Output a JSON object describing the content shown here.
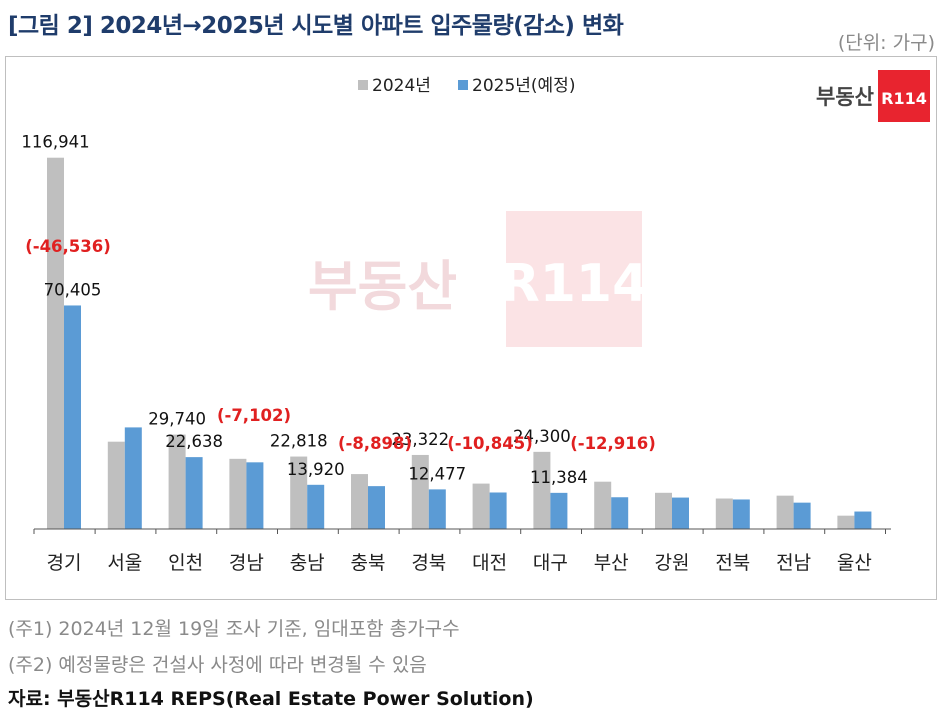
{
  "header": {
    "title": "[그림 2] 2024년→2025년 시도별 아파트 입주물량(감소) 변화",
    "unit": "(단위: 가구)"
  },
  "brand": {
    "logo_text": "부동산",
    "logo_badge": "R114",
    "badge_color": "#e8242f"
  },
  "chart_data": {
    "type": "bar",
    "categories": [
      "경기",
      "서울",
      "인천",
      "경남",
      "충남",
      "충북",
      "경북",
      "대전",
      "대구",
      "부산",
      "강원",
      "전북",
      "전남",
      "울산"
    ],
    "series": [
      {
        "name": "2024년",
        "color": "#bfbfbf",
        "values": [
          116941,
          27500,
          29740,
          22100,
          22818,
          17300,
          23322,
          14300,
          24300,
          14900,
          11400,
          9600,
          10500,
          4200
        ]
      },
      {
        "name": "2025년(예정)",
        "color": "#5b9bd5",
        "values": [
          70405,
          32000,
          22638,
          21000,
          13920,
          13500,
          12477,
          11500,
          11384,
          10000,
          9900,
          9300,
          8300,
          5500
        ]
      }
    ],
    "ylim": [
      0,
      120000
    ],
    "grid": false,
    "legend": "top-center",
    "data_labels": [
      {
        "category": "경기",
        "series": 0,
        "text": "116,941"
      },
      {
        "category": "경기",
        "series": 1,
        "text": "70,405"
      },
      {
        "category": "인천",
        "series": 0,
        "text": "29,740"
      },
      {
        "category": "인천",
        "series": 1,
        "text": "22,638"
      },
      {
        "category": "충남",
        "series": 0,
        "text": "22,818"
      },
      {
        "category": "충남",
        "series": 1,
        "text": "13,920"
      },
      {
        "category": "경북",
        "series": 0,
        "text": "23,322"
      },
      {
        "category": "경북",
        "series": 1,
        "text": "12,477"
      },
      {
        "category": "대구",
        "series": 0,
        "text": "24,300"
      },
      {
        "category": "대구",
        "series": 1,
        "text": "11,384"
      }
    ],
    "annotations": [
      {
        "category": "경기",
        "text": "(-46,536)",
        "color": "#e02020"
      },
      {
        "category": "인천",
        "text": "(-7,102)",
        "color": "#e02020"
      },
      {
        "category": "충남",
        "text": "(-8,898)",
        "color": "#e02020"
      },
      {
        "category": "경북",
        "text": "(-10,845)",
        "color": "#e02020"
      },
      {
        "category": "대구",
        "text": "(-12,916)",
        "color": "#e02020"
      }
    ]
  },
  "notes": [
    "(주1) 2024년 12월 19일 조사 기준, 임대포함 총가구수",
    "(주2) 예정물량은 건설사 사정에 따라 변경될 수 있음"
  ],
  "source": "자료: 부동산R114 REPS(Real Estate Power Solution)"
}
